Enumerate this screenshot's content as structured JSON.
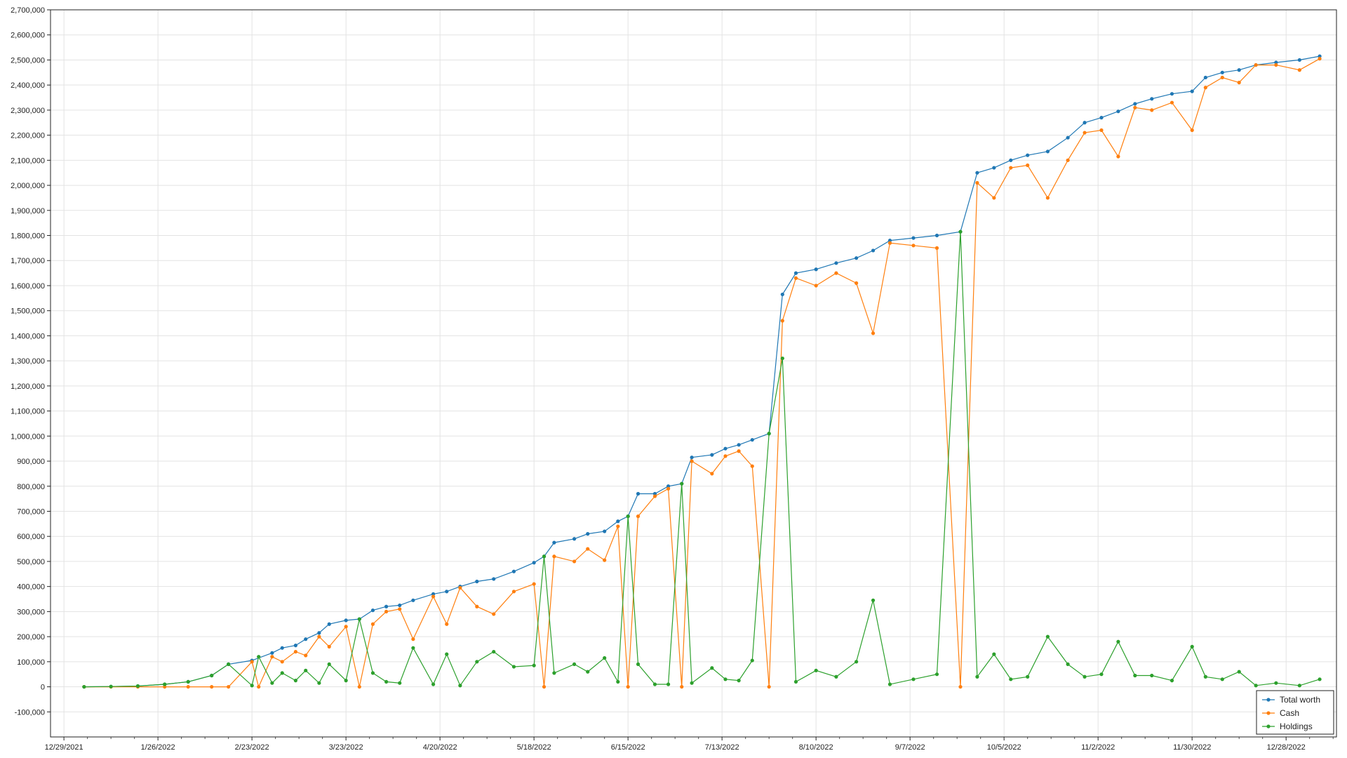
{
  "chart_data": {
    "type": "line",
    "title": "",
    "xlabel": "",
    "ylabel": "",
    "x_ticks": [
      "12/29/2021",
      "1/26/2022",
      "2/23/2022",
      "3/23/2022",
      "4/20/2022",
      "5/18/2022",
      "6/15/2022",
      "7/13/2022",
      "8/10/2022",
      "9/7/2022",
      "10/5/2022",
      "11/2/2022",
      "11/30/2022",
      "12/28/2022"
    ],
    "xlim": [
      "2021-12-25",
      "2023-01-12"
    ],
    "ylim": [
      -200000,
      2700000
    ],
    "y_ticks": [
      -100000,
      0,
      100000,
      200000,
      300000,
      400000,
      500000,
      600000,
      700000,
      800000,
      900000,
      1000000,
      1100000,
      1200000,
      1300000,
      1400000,
      1500000,
      1600000,
      1700000,
      1800000,
      1900000,
      2000000,
      2100000,
      2200000,
      2300000,
      2400000,
      2500000,
      2600000,
      2700000
    ],
    "grid": true,
    "legend": "bottom-right",
    "series": [
      {
        "name": "Total worth",
        "color": "#1f77b4",
        "points": [
          [
            "2022-01-04",
            0
          ],
          [
            "2022-01-12",
            1000
          ],
          [
            "2022-01-20",
            3000
          ],
          [
            "2022-01-28",
            10000
          ],
          [
            "2022-02-04",
            20000
          ],
          [
            "2022-02-11",
            45000
          ],
          [
            "2022-02-16",
            90000
          ],
          [
            "2022-02-23",
            105000
          ],
          [
            "2022-03-01",
            135000
          ],
          [
            "2022-03-04",
            155000
          ],
          [
            "2022-03-08",
            165000
          ],
          [
            "2022-03-11",
            190000
          ],
          [
            "2022-03-15",
            215000
          ],
          [
            "2022-03-18",
            250000
          ],
          [
            "2022-03-23",
            265000
          ],
          [
            "2022-03-27",
            270000
          ],
          [
            "2022-03-31",
            305000
          ],
          [
            "2022-04-04",
            320000
          ],
          [
            "2022-04-08",
            325000
          ],
          [
            "2022-04-12",
            345000
          ],
          [
            "2022-04-18",
            370000
          ],
          [
            "2022-04-22",
            380000
          ],
          [
            "2022-04-26",
            400000
          ],
          [
            "2022-05-01",
            420000
          ],
          [
            "2022-05-06",
            430000
          ],
          [
            "2022-05-12",
            460000
          ],
          [
            "2022-05-18",
            495000
          ],
          [
            "2022-05-21",
            520000
          ],
          [
            "2022-05-24",
            575000
          ],
          [
            "2022-05-30",
            590000
          ],
          [
            "2022-06-03",
            610000
          ],
          [
            "2022-06-08",
            620000
          ],
          [
            "2022-06-12",
            660000
          ],
          [
            "2022-06-15",
            680000
          ],
          [
            "2022-06-18",
            770000
          ],
          [
            "2022-06-23",
            770000
          ],
          [
            "2022-06-27",
            800000
          ],
          [
            "2022-07-01",
            810000
          ],
          [
            "2022-07-04",
            915000
          ],
          [
            "2022-07-10",
            925000
          ],
          [
            "2022-07-14",
            950000
          ],
          [
            "2022-07-18",
            965000
          ],
          [
            "2022-07-22",
            985000
          ],
          [
            "2022-07-27",
            1010000
          ],
          [
            "2022-07-31",
            1565000
          ],
          [
            "2022-08-04",
            1650000
          ],
          [
            "2022-08-10",
            1665000
          ],
          [
            "2022-08-16",
            1690000
          ],
          [
            "2022-08-22",
            1710000
          ],
          [
            "2022-08-27",
            1740000
          ],
          [
            "2022-09-01",
            1780000
          ],
          [
            "2022-09-08",
            1790000
          ],
          [
            "2022-09-15",
            1800000
          ],
          [
            "2022-09-22",
            1815000
          ],
          [
            "2022-09-27",
            2050000
          ],
          [
            "2022-10-02",
            2070000
          ],
          [
            "2022-10-07",
            2100000
          ],
          [
            "2022-10-12",
            2120000
          ],
          [
            "2022-10-18",
            2135000
          ],
          [
            "2022-10-24",
            2190000
          ],
          [
            "2022-10-29",
            2250000
          ],
          [
            "2022-11-03",
            2270000
          ],
          [
            "2022-11-08",
            2295000
          ],
          [
            "2022-11-13",
            2325000
          ],
          [
            "2022-11-18",
            2345000
          ],
          [
            "2022-11-24",
            2365000
          ],
          [
            "2022-11-30",
            2375000
          ],
          [
            "2022-12-04",
            2430000
          ],
          [
            "2022-12-09",
            2450000
          ],
          [
            "2022-12-14",
            2460000
          ],
          [
            "2022-12-19",
            2480000
          ],
          [
            "2022-12-25",
            2490000
          ],
          [
            "2023-01-01",
            2500000
          ],
          [
            "2023-01-07",
            2515000
          ]
        ]
      },
      {
        "name": "Cash",
        "color": "#ff7f0e",
        "points": [
          [
            "2022-01-04",
            0
          ],
          [
            "2022-01-12",
            0
          ],
          [
            "2022-01-20",
            0
          ],
          [
            "2022-01-28",
            0
          ],
          [
            "2022-02-04",
            0
          ],
          [
            "2022-02-11",
            0
          ],
          [
            "2022-02-16",
            0
          ],
          [
            "2022-02-23",
            100000
          ],
          [
            "2022-02-25",
            0
          ],
          [
            "2022-03-01",
            120000
          ],
          [
            "2022-03-04",
            100000
          ],
          [
            "2022-03-08",
            140000
          ],
          [
            "2022-03-11",
            125000
          ],
          [
            "2022-03-15",
            200000
          ],
          [
            "2022-03-18",
            160000
          ],
          [
            "2022-03-23",
            240000
          ],
          [
            "2022-03-27",
            0
          ],
          [
            "2022-03-31",
            250000
          ],
          [
            "2022-04-04",
            300000
          ],
          [
            "2022-04-08",
            310000
          ],
          [
            "2022-04-12",
            190000
          ],
          [
            "2022-04-18",
            360000
          ],
          [
            "2022-04-22",
            250000
          ],
          [
            "2022-04-26",
            395000
          ],
          [
            "2022-05-01",
            320000
          ],
          [
            "2022-05-06",
            290000
          ],
          [
            "2022-05-12",
            380000
          ],
          [
            "2022-05-18",
            410000
          ],
          [
            "2022-05-21",
            0
          ],
          [
            "2022-05-24",
            520000
          ],
          [
            "2022-05-30",
            500000
          ],
          [
            "2022-06-03",
            550000
          ],
          [
            "2022-06-08",
            505000
          ],
          [
            "2022-06-12",
            640000
          ],
          [
            "2022-06-15",
            0
          ],
          [
            "2022-06-18",
            680000
          ],
          [
            "2022-06-23",
            760000
          ],
          [
            "2022-06-27",
            790000
          ],
          [
            "2022-07-01",
            0
          ],
          [
            "2022-07-04",
            900000
          ],
          [
            "2022-07-10",
            850000
          ],
          [
            "2022-07-14",
            920000
          ],
          [
            "2022-07-18",
            940000
          ],
          [
            "2022-07-22",
            880000
          ],
          [
            "2022-07-27",
            0
          ],
          [
            "2022-07-31",
            1460000
          ],
          [
            "2022-08-04",
            1630000
          ],
          [
            "2022-08-10",
            1600000
          ],
          [
            "2022-08-16",
            1650000
          ],
          [
            "2022-08-22",
            1610000
          ],
          [
            "2022-08-27",
            1410000
          ],
          [
            "2022-09-01",
            1770000
          ],
          [
            "2022-09-08",
            1760000
          ],
          [
            "2022-09-15",
            1750000
          ],
          [
            "2022-09-22",
            0
          ],
          [
            "2022-09-27",
            2010000
          ],
          [
            "2022-10-02",
            1950000
          ],
          [
            "2022-10-07",
            2070000
          ],
          [
            "2022-10-12",
            2080000
          ],
          [
            "2022-10-18",
            1950000
          ],
          [
            "2022-10-24",
            2100000
          ],
          [
            "2022-10-29",
            2210000
          ],
          [
            "2022-11-03",
            2220000
          ],
          [
            "2022-11-08",
            2115000
          ],
          [
            "2022-11-13",
            2310000
          ],
          [
            "2022-11-18",
            2300000
          ],
          [
            "2022-11-24",
            2330000
          ],
          [
            "2022-11-30",
            2220000
          ],
          [
            "2022-12-04",
            2390000
          ],
          [
            "2022-12-09",
            2430000
          ],
          [
            "2022-12-14",
            2410000
          ],
          [
            "2022-12-19",
            2480000
          ],
          [
            "2022-12-25",
            2480000
          ],
          [
            "2023-01-01",
            2460000
          ],
          [
            "2023-01-07",
            2505000
          ]
        ]
      },
      {
        "name": "Holdings",
        "color": "#2ca02c",
        "points": [
          [
            "2022-01-04",
            0
          ],
          [
            "2022-01-12",
            1000
          ],
          [
            "2022-01-20",
            3000
          ],
          [
            "2022-01-28",
            10000
          ],
          [
            "2022-02-04",
            20000
          ],
          [
            "2022-02-11",
            45000
          ],
          [
            "2022-02-16",
            90000
          ],
          [
            "2022-02-23",
            5000
          ],
          [
            "2022-02-25",
            120000
          ],
          [
            "2022-03-01",
            15000
          ],
          [
            "2022-03-04",
            55000
          ],
          [
            "2022-03-08",
            25000
          ],
          [
            "2022-03-11",
            65000
          ],
          [
            "2022-03-15",
            15000
          ],
          [
            "2022-03-18",
            90000
          ],
          [
            "2022-03-23",
            25000
          ],
          [
            "2022-03-27",
            270000
          ],
          [
            "2022-03-31",
            55000
          ],
          [
            "2022-04-04",
            20000
          ],
          [
            "2022-04-08",
            15000
          ],
          [
            "2022-04-12",
            155000
          ],
          [
            "2022-04-18",
            10000
          ],
          [
            "2022-04-22",
            130000
          ],
          [
            "2022-04-26",
            5000
          ],
          [
            "2022-05-01",
            100000
          ],
          [
            "2022-05-06",
            140000
          ],
          [
            "2022-05-12",
            80000
          ],
          [
            "2022-05-18",
            85000
          ],
          [
            "2022-05-21",
            520000
          ],
          [
            "2022-05-24",
            55000
          ],
          [
            "2022-05-30",
            90000
          ],
          [
            "2022-06-03",
            60000
          ],
          [
            "2022-06-08",
            115000
          ],
          [
            "2022-06-12",
            20000
          ],
          [
            "2022-06-15",
            680000
          ],
          [
            "2022-06-18",
            90000
          ],
          [
            "2022-06-23",
            10000
          ],
          [
            "2022-06-27",
            10000
          ],
          [
            "2022-07-01",
            810000
          ],
          [
            "2022-07-04",
            15000
          ],
          [
            "2022-07-10",
            75000
          ],
          [
            "2022-07-14",
            30000
          ],
          [
            "2022-07-18",
            25000
          ],
          [
            "2022-07-22",
            105000
          ],
          [
            "2022-07-27",
            1010000
          ],
          [
            "2022-07-31",
            1310000
          ],
          [
            "2022-08-04",
            20000
          ],
          [
            "2022-08-10",
            65000
          ],
          [
            "2022-08-16",
            40000
          ],
          [
            "2022-08-22",
            100000
          ],
          [
            "2022-08-27",
            345000
          ],
          [
            "2022-09-01",
            10000
          ],
          [
            "2022-09-08",
            30000
          ],
          [
            "2022-09-15",
            50000
          ],
          [
            "2022-09-22",
            1815000
          ],
          [
            "2022-09-27",
            40000
          ],
          [
            "2022-10-02",
            130000
          ],
          [
            "2022-10-07",
            30000
          ],
          [
            "2022-10-12",
            40000
          ],
          [
            "2022-10-18",
            200000
          ],
          [
            "2022-10-24",
            90000
          ],
          [
            "2022-10-29",
            40000
          ],
          [
            "2022-11-03",
            50000
          ],
          [
            "2022-11-08",
            180000
          ],
          [
            "2022-11-13",
            45000
          ],
          [
            "2022-11-18",
            45000
          ],
          [
            "2022-11-24",
            25000
          ],
          [
            "2022-11-30",
            160000
          ],
          [
            "2022-12-04",
            40000
          ],
          [
            "2022-12-09",
            30000
          ],
          [
            "2022-12-14",
            60000
          ],
          [
            "2022-12-19",
            5000
          ],
          [
            "2022-12-25",
            15000
          ],
          [
            "2023-01-01",
            5000
          ],
          [
            "2023-01-07",
            30000
          ]
        ]
      }
    ]
  }
}
